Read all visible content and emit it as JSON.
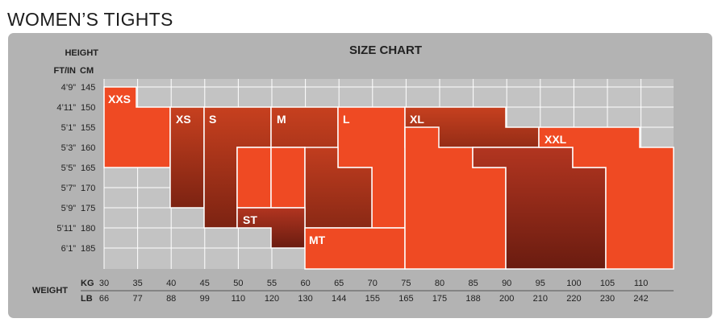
{
  "page_title": "WOMEN’S TIGHTS",
  "chart_data": {
    "type": "table",
    "title": "SIZE CHART",
    "height_axis": {
      "label": "HEIGHT",
      "ft_in_label": "FT/IN",
      "cm_label": "CM",
      "ft_in_ticks": [
        "4’9”",
        "4’11”",
        "5’1”",
        "5’3”",
        "5’5”",
        "5’7”",
        "5’9”",
        "5’11”",
        "6’1”"
      ],
      "cm_ticks": [
        145,
        150,
        155,
        160,
        165,
        170,
        175,
        180,
        185
      ]
    },
    "weight_axis": {
      "label": "WEIGHT",
      "kg_label": "KG",
      "lb_label": "LB",
      "kg_ticks": [
        30,
        35,
        40,
        45,
        50,
        55,
        60,
        65,
        70,
        75,
        80,
        85,
        90,
        95,
        100,
        105,
        110
      ],
      "lb_ticks": [
        66,
        77,
        88,
        99,
        110,
        120,
        130,
        144,
        155,
        165,
        175,
        188,
        200,
        210,
        220,
        230,
        242
      ]
    },
    "sizes": [
      {
        "label": "XXS",
        "color": "#ef4a23",
        "weight_kg": [
          30,
          40
        ],
        "height_cm": [
          145,
          165
        ]
      },
      {
        "label": "XS",
        "color": "#b8391f",
        "weight_kg": [
          40,
          50
        ],
        "height_cm": [
          150,
          175
        ]
      },
      {
        "label": "S",
        "color": "#b8391f",
        "weight_kg": [
          45,
          55
        ],
        "height_cm": [
          150,
          180
        ]
      },
      {
        "label": "ST",
        "color": "#a83320",
        "weight_kg": [
          50,
          60
        ],
        "height_cm": [
          175,
          185
        ]
      },
      {
        "label": "M",
        "color": "#b8391f",
        "weight_kg": [
          55,
          65
        ],
        "height_cm": [
          150,
          175
        ]
      },
      {
        "label": "MT",
        "color": "#ef4a23",
        "weight_kg": [
          60,
          75
        ],
        "height_cm": [
          180,
          190
        ]
      },
      {
        "label": "L",
        "color": "#b8391f",
        "weight_kg": [
          65,
          75
        ],
        "height_cm": [
          150,
          180
        ]
      },
      {
        "label": "XL",
        "color": "#b8391f",
        "weight_kg": [
          75,
          90
        ],
        "height_cm": [
          150,
          190
        ]
      },
      {
        "label": "XXL",
        "color": "#ef4a23",
        "weight_kg": [
          90,
          115
        ],
        "height_cm": [
          155,
          190
        ]
      }
    ]
  }
}
